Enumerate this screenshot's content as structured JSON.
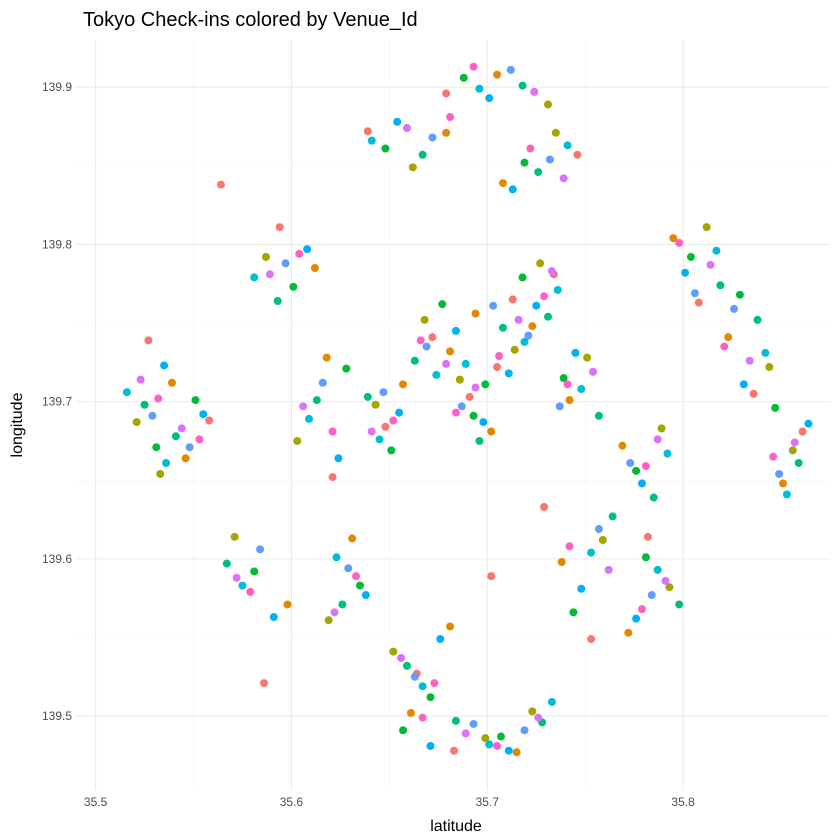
{
  "chart_data": {
    "type": "scatter",
    "title": "Tokyo Check-ins colored by Venue_Id",
    "xlabel": "latitude",
    "ylabel": "longitude",
    "xlim": [
      35.49,
      35.875
    ],
    "ylim": [
      139.453,
      139.93
    ],
    "x_ticks": [
      35.5,
      35.6,
      35.7,
      35.8
    ],
    "x_tick_labels": [
      "35.5",
      "35.6",
      "35.7",
      "35.8"
    ],
    "y_ticks": [
      139.5,
      139.6,
      139.7,
      139.8,
      139.9
    ],
    "y_tick_labels": [
      "139.5",
      "139.6",
      "139.7",
      "139.8",
      "139.9"
    ],
    "grid": true,
    "legend": "none",
    "series": [
      {
        "color": "#F8766D",
        "points": [
          [
            35.672,
            139.741
          ],
          [
            35.705,
            139.722
          ],
          [
            35.648,
            139.684
          ],
          [
            35.713,
            139.765
          ],
          [
            35.691,
            139.703
          ],
          [
            35.734,
            139.781
          ],
          [
            35.621,
            139.652
          ],
          [
            35.782,
            139.614
          ],
          [
            35.558,
            139.688
          ],
          [
            35.836,
            139.705
          ],
          [
            35.664,
            139.527
          ],
          [
            35.746,
            139.857
          ],
          [
            35.594,
            139.811
          ],
          [
            35.702,
            139.589
          ],
          [
            35.527,
            139.739
          ],
          [
            35.808,
            139.763
          ],
          [
            35.753,
            139.549
          ],
          [
            35.639,
            139.872
          ],
          [
            35.683,
            139.478
          ],
          [
            35.564,
            139.838
          ],
          [
            35.861,
            139.681
          ],
          [
            35.586,
            139.521
          ],
          [
            35.729,
            139.633
          ],
          [
            35.679,
            139.896
          ]
        ]
      },
      {
        "color": "#E58700",
        "points": [
          [
            35.681,
            139.732
          ],
          [
            35.694,
            139.756
          ],
          [
            35.657,
            139.711
          ],
          [
            35.723,
            139.748
          ],
          [
            35.702,
            139.681
          ],
          [
            35.742,
            139.701
          ],
          [
            35.618,
            139.728
          ],
          [
            35.769,
            139.672
          ],
          [
            35.546,
            139.664
          ],
          [
            35.823,
            139.741
          ],
          [
            35.681,
            139.557
          ],
          [
            35.708,
            139.839
          ],
          [
            35.612,
            139.785
          ],
          [
            35.738,
            139.598
          ],
          [
            35.539,
            139.712
          ],
          [
            35.795,
            139.804
          ],
          [
            35.661,
            139.502
          ],
          [
            35.679,
            139.871
          ],
          [
            35.715,
            139.477
          ],
          [
            35.598,
            139.571
          ],
          [
            35.851,
            139.648
          ],
          [
            35.631,
            139.613
          ],
          [
            35.772,
            139.553
          ],
          [
            35.705,
            139.908
          ]
        ]
      },
      {
        "color": "#A3A500",
        "points": [
          [
            35.668,
            139.752
          ],
          [
            35.714,
            139.733
          ],
          [
            35.643,
            139.698
          ],
          [
            35.727,
            139.788
          ],
          [
            35.686,
            139.714
          ],
          [
            35.751,
            139.728
          ],
          [
            35.603,
            139.675
          ],
          [
            35.789,
            139.683
          ],
          [
            35.533,
            139.654
          ],
          [
            35.844,
            139.722
          ],
          [
            35.652,
            139.541
          ],
          [
            35.735,
            139.871
          ],
          [
            35.587,
            139.792
          ],
          [
            35.759,
            139.612
          ],
          [
            35.521,
            139.687
          ],
          [
            35.812,
            139.811
          ],
          [
            35.699,
            139.486
          ],
          [
            35.662,
            139.849
          ],
          [
            35.723,
            139.503
          ],
          [
            35.571,
            139.614
          ],
          [
            35.856,
            139.669
          ],
          [
            35.619,
            139.561
          ],
          [
            35.793,
            139.582
          ],
          [
            35.731,
            139.889
          ]
        ]
      },
      {
        "color": "#00BA38",
        "points": [
          [
            35.677,
            139.762
          ],
          [
            35.699,
            139.711
          ],
          [
            35.651,
            139.669
          ],
          [
            35.718,
            139.779
          ],
          [
            35.693,
            139.691
          ],
          [
            35.739,
            139.715
          ],
          [
            35.628,
            139.721
          ],
          [
            35.776,
            139.656
          ],
          [
            35.551,
            139.701
          ],
          [
            35.829,
            139.768
          ],
          [
            35.671,
            139.512
          ],
          [
            35.719,
            139.852
          ],
          [
            35.601,
            139.773
          ],
          [
            35.744,
            139.566
          ],
          [
            35.531,
            139.671
          ],
          [
            35.804,
            139.792
          ],
          [
            35.657,
            139.491
          ],
          [
            35.648,
            139.861
          ],
          [
            35.707,
            139.487
          ],
          [
            35.581,
            139.592
          ],
          [
            35.847,
            139.696
          ],
          [
            35.635,
            139.583
          ],
          [
            35.781,
            139.601
          ],
          [
            35.688,
            139.906
          ]
        ]
      },
      {
        "color": "#00BF7D",
        "points": [
          [
            35.663,
            139.726
          ],
          [
            35.708,
            139.747
          ],
          [
            35.639,
            139.703
          ],
          [
            35.731,
            139.754
          ],
          [
            35.696,
            139.675
          ],
          [
            35.757,
            139.691
          ],
          [
            35.613,
            139.701
          ],
          [
            35.785,
            139.639
          ],
          [
            35.541,
            139.678
          ],
          [
            35.838,
            139.752
          ],
          [
            35.659,
            139.532
          ],
          [
            35.726,
            139.846
          ],
          [
            35.593,
            139.764
          ],
          [
            35.764,
            139.627
          ],
          [
            35.525,
            139.698
          ],
          [
            35.819,
            139.774
          ],
          [
            35.684,
            139.497
          ],
          [
            35.667,
            139.857
          ],
          [
            35.728,
            139.496
          ],
          [
            35.567,
            139.597
          ],
          [
            35.859,
            139.661
          ],
          [
            35.626,
            139.571
          ],
          [
            35.798,
            139.571
          ],
          [
            35.718,
            139.901
          ]
        ]
      },
      {
        "color": "#00BCD8",
        "points": [
          [
            35.674,
            139.717
          ],
          [
            35.719,
            139.738
          ],
          [
            35.645,
            139.676
          ],
          [
            35.736,
            139.771
          ],
          [
            35.689,
            139.724
          ],
          [
            35.748,
            139.708
          ],
          [
            35.609,
            139.689
          ],
          [
            35.792,
            139.667
          ],
          [
            35.536,
            139.661
          ],
          [
            35.842,
            139.731
          ],
          [
            35.667,
            139.519
          ],
          [
            35.741,
            139.863
          ],
          [
            35.581,
            139.779
          ],
          [
            35.753,
            139.604
          ],
          [
            35.516,
            139.706
          ],
          [
            35.817,
            139.796
          ],
          [
            35.701,
            139.482
          ],
          [
            35.641,
            139.866
          ],
          [
            35.733,
            139.509
          ],
          [
            35.575,
            139.583
          ],
          [
            35.853,
            139.641
          ],
          [
            35.623,
            139.601
          ],
          [
            35.787,
            139.593
          ],
          [
            35.696,
            139.899
          ]
        ]
      },
      {
        "color": "#00B0F6",
        "points": [
          [
            35.684,
            139.745
          ],
          [
            35.711,
            139.718
          ],
          [
            35.655,
            139.693
          ],
          [
            35.725,
            139.761
          ],
          [
            35.698,
            139.687
          ],
          [
            35.745,
            139.731
          ],
          [
            35.624,
            139.664
          ],
          [
            35.779,
            139.648
          ],
          [
            35.555,
            139.692
          ],
          [
            35.831,
            139.711
          ],
          [
            35.676,
            139.549
          ],
          [
            35.713,
            139.835
          ],
          [
            35.608,
            139.797
          ],
          [
            35.748,
            139.581
          ],
          [
            35.535,
            139.723
          ],
          [
            35.801,
            139.782
          ],
          [
            35.671,
            139.481
          ],
          [
            35.654,
            139.878
          ],
          [
            35.711,
            139.478
          ],
          [
            35.591,
            139.563
          ],
          [
            35.864,
            139.686
          ],
          [
            35.638,
            139.577
          ],
          [
            35.776,
            139.562
          ],
          [
            35.701,
            139.893
          ]
        ]
      },
      {
        "color": "#619CFF",
        "points": [
          [
            35.669,
            139.735
          ],
          [
            35.703,
            139.761
          ],
          [
            35.647,
            139.706
          ],
          [
            35.721,
            139.742
          ],
          [
            35.687,
            139.697
          ],
          [
            35.737,
            139.697
          ],
          [
            35.616,
            139.712
          ],
          [
            35.773,
            139.661
          ],
          [
            35.548,
            139.671
          ],
          [
            35.826,
            139.759
          ],
          [
            35.663,
            139.525
          ],
          [
            35.732,
            139.854
          ],
          [
            35.597,
            139.788
          ],
          [
            35.757,
            139.619
          ],
          [
            35.529,
            139.691
          ],
          [
            35.806,
            139.769
          ],
          [
            35.693,
            139.495
          ],
          [
            35.672,
            139.868
          ],
          [
            35.719,
            139.491
          ],
          [
            35.584,
            139.606
          ],
          [
            35.849,
            139.654
          ],
          [
            35.629,
            139.594
          ],
          [
            35.784,
            139.577
          ],
          [
            35.712,
            139.911
          ]
        ]
      },
      {
        "color": "#DB72FB",
        "points": [
          [
            35.679,
            139.724
          ],
          [
            35.716,
            139.752
          ],
          [
            35.641,
            139.681
          ],
          [
            35.733,
            139.783
          ],
          [
            35.694,
            139.709
          ],
          [
            35.754,
            139.719
          ],
          [
            35.606,
            139.697
          ],
          [
            35.787,
            139.676
          ],
          [
            35.544,
            139.683
          ],
          [
            35.834,
            139.726
          ],
          [
            35.656,
            139.537
          ],
          [
            35.739,
            139.842
          ],
          [
            35.589,
            139.781
          ],
          [
            35.762,
            139.593
          ],
          [
            35.523,
            139.714
          ],
          [
            35.814,
            139.787
          ],
          [
            35.689,
            139.489
          ],
          [
            35.659,
            139.874
          ],
          [
            35.726,
            139.499
          ],
          [
            35.572,
            139.588
          ],
          [
            35.857,
            139.674
          ],
          [
            35.622,
            139.566
          ],
          [
            35.791,
            139.586
          ],
          [
            35.724,
            139.897
          ]
        ]
      },
      {
        "color": "#FF61C3",
        "points": [
          [
            35.666,
            139.739
          ],
          [
            35.706,
            139.729
          ],
          [
            35.652,
            139.688
          ],
          [
            35.729,
            139.767
          ],
          [
            35.684,
            139.693
          ],
          [
            35.741,
            139.711
          ],
          [
            35.621,
            139.681
          ],
          [
            35.781,
            139.659
          ],
          [
            35.553,
            139.676
          ],
          [
            35.821,
            139.735
          ],
          [
            35.673,
            139.521
          ],
          [
            35.722,
            139.861
          ],
          [
            35.604,
            139.794
          ],
          [
            35.742,
            139.608
          ],
          [
            35.532,
            139.702
          ],
          [
            35.798,
            139.801
          ],
          [
            35.667,
            139.499
          ],
          [
            35.681,
            139.881
          ],
          [
            35.705,
            139.481
          ],
          [
            35.579,
            139.579
          ],
          [
            35.846,
            139.665
          ],
          [
            35.633,
            139.589
          ],
          [
            35.779,
            139.568
          ],
          [
            35.693,
            139.913
          ]
        ]
      }
    ]
  }
}
